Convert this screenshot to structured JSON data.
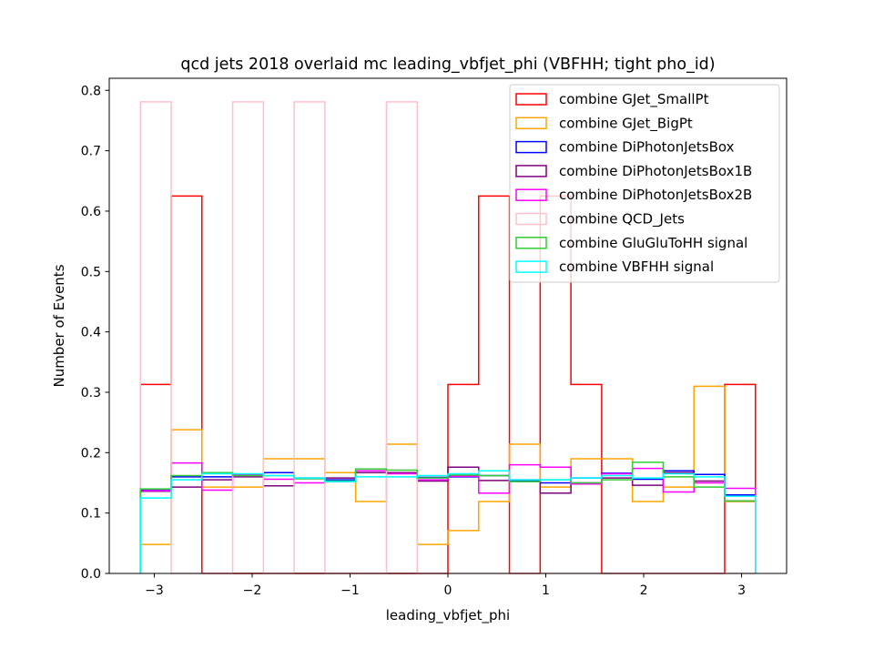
{
  "chart_data": {
    "type": "step-histogram",
    "title": "qcd jets 2018 overlaid mc leading_vbfjet_phi (VBFHH; tight pho_id)",
    "xlabel": "leading_vbfjet_phi",
    "ylabel": "Number of Events",
    "xlim": [
      -3.46,
      3.46
    ],
    "ylim": [
      0,
      0.82
    ],
    "xticks": [
      -3,
      -2,
      -1,
      0,
      1,
      2,
      3
    ],
    "xtick_labels": [
      "−3",
      "−2",
      "−1",
      "0",
      "1",
      "2",
      "3"
    ],
    "yticks": [
      0.0,
      0.1,
      0.2,
      0.3,
      0.4,
      0.5,
      0.6,
      0.7,
      0.8
    ],
    "ytick_labels": [
      "0.0",
      "0.1",
      "0.2",
      "0.3",
      "0.4",
      "0.5",
      "0.6",
      "0.7",
      "0.8"
    ],
    "grid": false,
    "legend_position": "top-right",
    "bin_edges": [
      -3.1416,
      -2.8274,
      -2.5133,
      -2.1991,
      -1.885,
      -1.5708,
      -1.2566,
      -0.9425,
      -0.6283,
      -0.3142,
      0.0,
      0.3142,
      0.6283,
      0.9425,
      1.2566,
      1.5708,
      1.885,
      2.1991,
      2.5133,
      2.8274,
      3.1416
    ],
    "series": [
      {
        "name": "combine GJet_SmallPt",
        "color": "#ff0000",
        "values": [
          0.313,
          0.625,
          0.0,
          0.0,
          0.0,
          0.0,
          0.0,
          0.0,
          0.0,
          0.0,
          0.313,
          0.625,
          0.0,
          0.625,
          0.313,
          0.0,
          0.0,
          0.0,
          0.0,
          0.313
        ]
      },
      {
        "name": "combine GJet_BigPt",
        "color": "#ffa500",
        "values": [
          0.048,
          0.238,
          0.143,
          0.143,
          0.19,
          0.19,
          0.167,
          0.119,
          0.214,
          0.048,
          0.071,
          0.119,
          0.214,
          0.143,
          0.19,
          0.19,
          0.119,
          0.143,
          0.31,
          0.119
        ]
      },
      {
        "name": "combine DiPhotonJetsBox",
        "color": "#0000ff",
        "values": [
          0.138,
          0.16,
          0.16,
          0.164,
          0.167,
          0.157,
          0.155,
          0.17,
          0.166,
          0.159,
          0.16,
          0.162,
          0.154,
          0.15,
          0.158,
          0.166,
          0.156,
          0.17,
          0.164,
          0.13
        ]
      },
      {
        "name": "combine DiPhotonJetsBox1B",
        "color": "#800080",
        "values": [
          0.136,
          0.143,
          0.155,
          0.16,
          0.145,
          0.158,
          0.158,
          0.167,
          0.167,
          0.153,
          0.176,
          0.154,
          0.155,
          0.133,
          0.15,
          0.158,
          0.146,
          0.167,
          0.153,
          0.12
        ]
      },
      {
        "name": "combine DiPhotonJetsBox2B",
        "color": "#ff00ff",
        "values": [
          0.137,
          0.183,
          0.138,
          0.163,
          0.156,
          0.15,
          0.152,
          0.17,
          0.165,
          0.155,
          0.161,
          0.133,
          0.18,
          0.176,
          0.148,
          0.165,
          0.174,
          0.135,
          0.15,
          0.141
        ]
      },
      {
        "name": "combine QCD_Jets",
        "color": "#ffc0cb",
        "values": [
          0.781,
          0.0,
          0.0,
          0.781,
          0.0,
          0.781,
          0.0,
          0.0,
          0.781,
          0.0,
          0.0,
          0.0,
          0.0,
          0.0,
          0.0,
          0.0,
          0.0,
          0.0,
          0.0,
          0.0
        ]
      },
      {
        "name": "combine GluGluToHH signal",
        "color": "#32cd32",
        "values": [
          0.14,
          0.162,
          0.167,
          0.162,
          0.162,
          0.157,
          0.153,
          0.173,
          0.171,
          0.158,
          0.163,
          0.162,
          0.152,
          0.155,
          0.15,
          0.155,
          0.184,
          0.16,
          0.143,
          0.12
        ]
      },
      {
        "name": "combine VBFHH signal",
        "color": "#00ffff",
        "values": [
          0.125,
          0.155,
          0.165,
          0.165,
          0.162,
          0.158,
          0.152,
          0.16,
          0.16,
          0.162,
          0.165,
          0.17,
          0.155,
          0.155,
          0.158,
          0.162,
          0.158,
          0.165,
          0.16,
          0.128
        ]
      }
    ]
  }
}
